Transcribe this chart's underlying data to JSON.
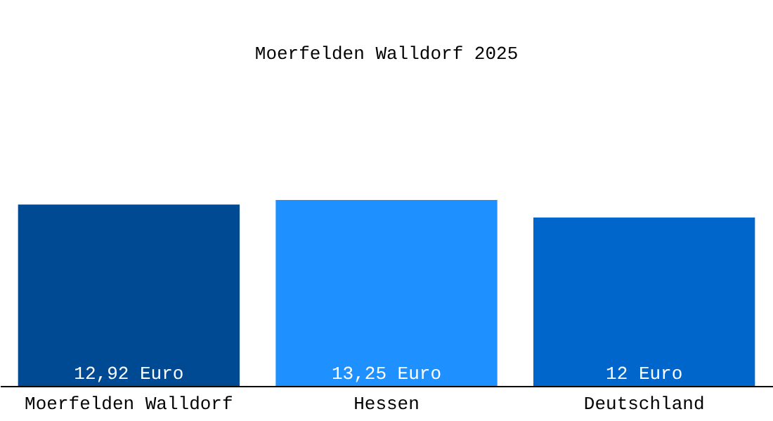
{
  "chart_data": {
    "type": "bar",
    "title": "Moerfelden Walldorf 2025",
    "categories": [
      "Moerfelden Walldorf",
      "Hessen",
      "Deutschland"
    ],
    "values": [
      12.92,
      13.25,
      12
    ],
    "colors": [
      "#004a94",
      "#1e90ff",
      "#0066cc"
    ],
    "value_labels": [
      "12,92 Euro",
      "13,25 Euro",
      "12 Euro"
    ]
  }
}
